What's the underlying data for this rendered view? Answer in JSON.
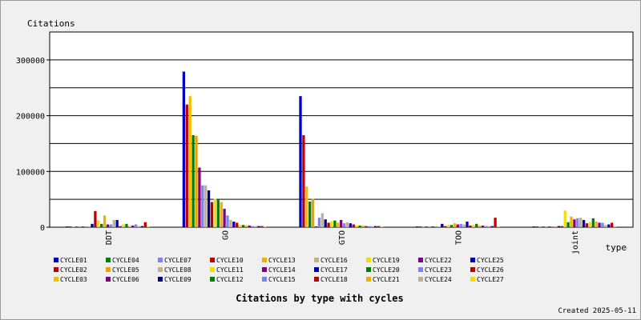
{
  "chart_data": {
    "type": "bar",
    "title": "Citations by type with cycles",
    "ylabel": "Citations",
    "xlabel": "type",
    "ylim": [
      0,
      350000
    ],
    "yticks": [
      0,
      100000,
      200000,
      300000
    ],
    "ytick_labels": [
      "0",
      "100000",
      "200000",
      "300000"
    ],
    "grid": "horizontal",
    "legend_position": "bottom",
    "footer": "Created 2025-05-11",
    "categories": [
      "DDT",
      "GO",
      "GTO",
      "TOO",
      "joint"
    ],
    "series": [
      {
        "name": "CYCLE01",
        "color": "#0000c0",
        "values": [
          0,
          279000,
          235000,
          0,
          0
        ]
      },
      {
        "name": "CYCLE02",
        "color": "#c00000",
        "values": [
          0,
          220000,
          165000,
          0,
          0
        ]
      },
      {
        "name": "CYCLE03",
        "color": "#f0c000",
        "values": [
          0,
          235000,
          73000,
          0,
          0
        ]
      },
      {
        "name": "CYCLE04",
        "color": "#008000",
        "values": [
          0,
          165000,
          46000,
          0,
          0
        ]
      },
      {
        "name": "CYCLE05",
        "color": "#f0a000",
        "values": [
          0,
          164000,
          51000,
          0,
          0
        ]
      },
      {
        "name": "CYCLE06",
        "color": "#800080",
        "values": [
          0,
          107000,
          0,
          0,
          0
        ]
      },
      {
        "name": "CYCLE07",
        "color": "#8080f0",
        "values": [
          0,
          75000,
          17000,
          0,
          0
        ]
      },
      {
        "name": "CYCLE08",
        "color": "#c0b090",
        "values": [
          0,
          75000,
          25000,
          0,
          0
        ]
      },
      {
        "name": "CYCLE09",
        "color": "#000080",
        "values": [
          6000,
          66000,
          14000,
          6000,
          2000
        ]
      },
      {
        "name": "CYCLE10",
        "color": "#c00000",
        "values": [
          29000,
          45000,
          8000,
          2000,
          2000
        ]
      },
      {
        "name": "CYCLE11",
        "color": "#f0e000",
        "values": [
          12000,
          51000,
          11000,
          4000,
          30000
        ]
      },
      {
        "name": "CYCLE12",
        "color": "#008000",
        "values": [
          6000,
          50000,
          12000,
          4000,
          9000
        ]
      },
      {
        "name": "CYCLE13",
        "color": "#f0b000",
        "values": [
          21000,
          45000,
          8000,
          7000,
          19000
        ]
      },
      {
        "name": "CYCLE14",
        "color": "#800080",
        "values": [
          5000,
          33000,
          13000,
          5000,
          14000
        ]
      },
      {
        "name": "CYCLE15",
        "color": "#8080f0",
        "values": [
          5000,
          21000,
          7000,
          6000,
          16000
        ]
      },
      {
        "name": "CYCLE16",
        "color": "#c0b090",
        "values": [
          13000,
          13000,
          9000,
          5000,
          17000
        ]
      },
      {
        "name": "CYCLE17",
        "color": "#0000c0",
        "values": [
          13000,
          10000,
          7000,
          10000,
          13000
        ]
      },
      {
        "name": "CYCLE18",
        "color": "#c00000",
        "values": [
          2000,
          8000,
          5000,
          3000,
          7000
        ]
      },
      {
        "name": "CYCLE19",
        "color": "#f0e000",
        "values": [
          5000,
          4000,
          3000,
          4000,
          9000
        ]
      },
      {
        "name": "CYCLE20",
        "color": "#008000",
        "values": [
          6000,
          4000,
          3000,
          6000,
          16000
        ]
      },
      {
        "name": "CYCLE21",
        "color": "#f0b000",
        "values": [
          2000,
          3000,
          3000,
          3000,
          10000
        ]
      },
      {
        "name": "CYCLE22",
        "color": "#800080",
        "values": [
          3000,
          3000,
          2000,
          3000,
          8000
        ]
      },
      {
        "name": "CYCLE23",
        "color": "#8080f0",
        "values": [
          5000,
          2000,
          2000,
          2000,
          8000
        ]
      },
      {
        "name": "CYCLE24",
        "color": "#c0b090",
        "values": [
          2000,
          2000,
          2000,
          2000,
          4000
        ]
      },
      {
        "name": "CYCLE25",
        "color": "#0000c0",
        "values": [
          2000,
          2000,
          2000,
          2000,
          5000
        ]
      },
      {
        "name": "CYCLE26",
        "color": "#c00000",
        "values": [
          9000,
          2000,
          2000,
          17000,
          8000
        ]
      },
      {
        "name": "CYCLE27",
        "color": "#f0e000",
        "values": [
          2000,
          2000,
          2000,
          2000,
          2000
        ]
      }
    ]
  }
}
